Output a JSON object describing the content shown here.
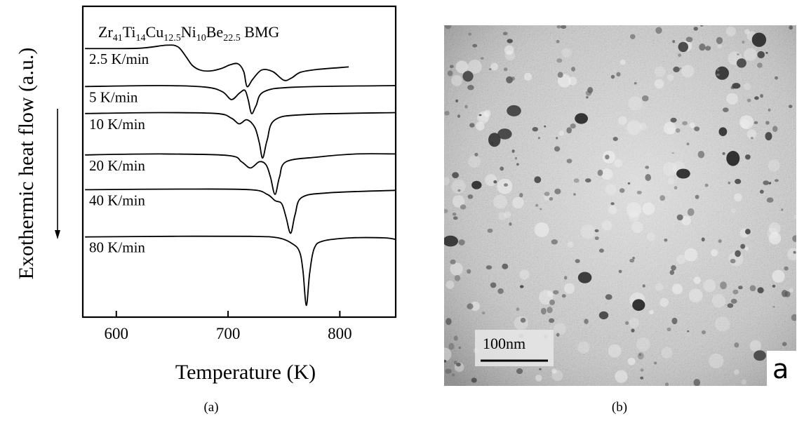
{
  "chart_data": {
    "type": "line",
    "title": {
      "parts": [
        {
          "t": "Zr",
          "sub": false
        },
        {
          "t": "41",
          "sub": true
        },
        {
          "t": "Ti",
          "sub": false
        },
        {
          "t": "14",
          "sub": true
        },
        {
          "t": "Cu",
          "sub": false
        },
        {
          "t": "12.5",
          "sub": true
        },
        {
          "t": "Ni",
          "sub": false
        },
        {
          "t": "10",
          "sub": true
        },
        {
          "t": "Be",
          "sub": false
        },
        {
          "t": "22.5",
          "sub": true
        },
        {
          "t": " BMG",
          "sub": false
        }
      ]
    },
    "xlabel": "Temperature (K)",
    "ylabel": "Exothermic heat flow (a.u.)",
    "xlim": [
      570,
      850
    ],
    "xticks": [
      600,
      700,
      800
    ],
    "ylim": [
      0,
      10
    ],
    "grid": false,
    "series": [
      {
        "label": "2.5 K/min",
        "points": [
          [
            572,
            8.64
          ],
          [
            620,
            8.65
          ],
          [
            645,
            8.75
          ],
          [
            655,
            8.7
          ],
          [
            662,
            8.4
          ],
          [
            668,
            8.1
          ],
          [
            675,
            7.95
          ],
          [
            684,
            7.92
          ],
          [
            694,
            8.0
          ],
          [
            702,
            8.12
          ],
          [
            709,
            8.15
          ],
          [
            714,
            7.9
          ],
          [
            717,
            7.42
          ],
          [
            722,
            7.65
          ],
          [
            730,
            7.95
          ],
          [
            740,
            7.9
          ],
          [
            750,
            7.62
          ],
          [
            757,
            7.7
          ],
          [
            765,
            7.88
          ],
          [
            780,
            7.97
          ],
          [
            808,
            8.05
          ]
        ]
      },
      {
        "label": "5 K/min",
        "points": [
          [
            572,
            7.42
          ],
          [
            640,
            7.45
          ],
          [
            680,
            7.4
          ],
          [
            695,
            7.25
          ],
          [
            703,
            7.0
          ],
          [
            710,
            7.2
          ],
          [
            715,
            7.3
          ],
          [
            718,
            7.0
          ],
          [
            721,
            6.55
          ],
          [
            725,
            6.8
          ],
          [
            732,
            7.25
          ],
          [
            760,
            7.4
          ],
          [
            850,
            7.45
          ]
        ]
      },
      {
        "label": "10 K/min",
        "points": [
          [
            572,
            6.55
          ],
          [
            640,
            6.58
          ],
          [
            690,
            6.55
          ],
          [
            703,
            6.4
          ],
          [
            710,
            6.22
          ],
          [
            717,
            6.35
          ],
          [
            724,
            6.1
          ],
          [
            728,
            5.6
          ],
          [
            731,
            5.12
          ],
          [
            735,
            5.7
          ],
          [
            742,
            6.35
          ],
          [
            770,
            6.52
          ],
          [
            850,
            6.58
          ]
        ]
      },
      {
        "label": "20 K/min",
        "points": [
          [
            572,
            5.22
          ],
          [
            640,
            5.25
          ],
          [
            700,
            5.2
          ],
          [
            712,
            5.0
          ],
          [
            720,
            4.8
          ],
          [
            728,
            5.0
          ],
          [
            734,
            4.9
          ],
          [
            738,
            4.5
          ],
          [
            742,
            3.95
          ],
          [
            746,
            4.5
          ],
          [
            752,
            5.0
          ],
          [
            780,
            5.15
          ],
          [
            815,
            5.25
          ],
          [
            850,
            5.25
          ]
        ]
      },
      {
        "label": "40 K/min",
        "points": [
          [
            572,
            4.1
          ],
          [
            660,
            4.12
          ],
          [
            720,
            4.1
          ],
          [
            735,
            3.95
          ],
          [
            742,
            3.75
          ],
          [
            748,
            3.65
          ],
          [
            752,
            3.2
          ],
          [
            756,
            2.7
          ],
          [
            760,
            3.3
          ],
          [
            766,
            3.85
          ],
          [
            790,
            4.0
          ],
          [
            850,
            4.08
          ]
        ]
      },
      {
        "label": "80 K/min",
        "points": [
          [
            572,
            2.58
          ],
          [
            650,
            2.6
          ],
          [
            720,
            2.6
          ],
          [
            745,
            2.55
          ],
          [
            758,
            2.35
          ],
          [
            764,
            2.1
          ],
          [
            767,
            1.5
          ],
          [
            770,
            0.38
          ],
          [
            773,
            1.4
          ],
          [
            777,
            2.2
          ],
          [
            785,
            2.45
          ],
          [
            810,
            2.55
          ],
          [
            840,
            2.55
          ],
          [
            850,
            2.5
          ]
        ]
      }
    ]
  },
  "tem_image": {
    "scale_bar_label": "100nm",
    "panel_letter": "a"
  },
  "captions": {
    "a": "(a)",
    "b": "(b)"
  }
}
